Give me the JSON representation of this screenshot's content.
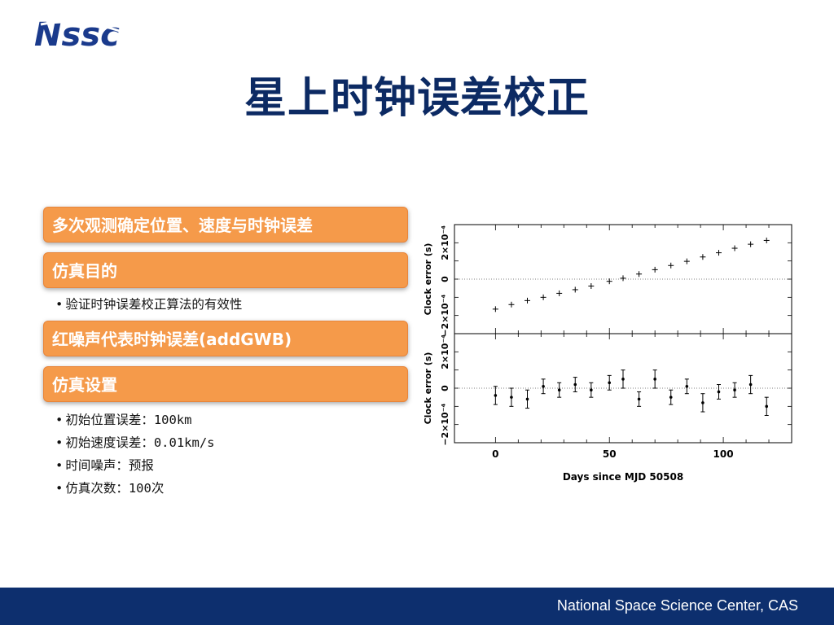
{
  "logo": {
    "text": "Nssc"
  },
  "title": "星上时钟误差校正",
  "sections": [
    {
      "heading": "多次观测确定位置、速度与时钟误差",
      "bullets": []
    },
    {
      "heading": "仿真目的",
      "bullets": [
        "验证时钟误差校正算法的有效性"
      ]
    },
    {
      "heading": "红噪声代表时钟误差(addGWB)",
      "bullets": []
    },
    {
      "heading": "仿真设置",
      "bullets": [
        "初始位置误差：100km",
        "初始速度误差：0.01km/s",
        "时间噪声：预报",
        "仿真次数：100次"
      ]
    }
  ],
  "footer": {
    "text": "National Space Science Center, CAS"
  },
  "chart_data": [
    {
      "type": "scatter",
      "xlabel": "Days since MJD 50508",
      "ylabel": "Clock error (s)",
      "xlim": [
        -18,
        130
      ],
      "ylim": [
        -0.0003,
        0.0003
      ],
      "yticks": [
        "−2×10⁻⁴",
        "0",
        "2×10⁻⁴"
      ],
      "x": [
        0,
        7,
        14,
        21,
        28,
        35,
        42,
        50,
        56,
        63,
        70,
        77,
        84,
        91,
        98,
        105,
        112,
        119
      ],
      "y": [
        -0.000165,
        -0.00014,
        -0.000118,
        -0.0001,
        -7.8e-05,
        -5.8e-05,
        -3.8e-05,
        -1.2e-05,
        5e-06,
        2.8e-05,
        5.2e-05,
        7.5e-05,
        9.8e-05,
        0.000122,
        0.000145,
        0.00017,
        0.000192,
        0.000213
      ]
    },
    {
      "type": "scatter",
      "xlabel": "Days since MJD 50508",
      "ylabel": "Clock error (s)",
      "xlim": [
        -18,
        130
      ],
      "ylim": [
        -0.0003,
        0.0003
      ],
      "xticks": [
        "0",
        "50",
        "100"
      ],
      "yticks": [
        "−2×10⁻⁴",
        "0",
        "2×10⁻⁴"
      ],
      "x": [
        0,
        7,
        14,
        21,
        28,
        35,
        42,
        50,
        56,
        63,
        70,
        77,
        84,
        91,
        98,
        105,
        112,
        119
      ],
      "y": [
        -4e-05,
        -5e-05,
        -6e-05,
        1e-05,
        -1e-05,
        2e-05,
        -1e-05,
        3e-05,
        5e-05,
        -6e-05,
        5e-05,
        -5e-05,
        1e-05,
        -8e-05,
        -2e-05,
        -1e-05,
        2e-05,
        -0.0001
      ],
      "err": [
        5e-05,
        5e-05,
        5e-05,
        4e-05,
        4e-05,
        4e-05,
        4e-05,
        4e-05,
        5e-05,
        4e-05,
        5e-05,
        4e-05,
        4e-05,
        5e-05,
        4e-05,
        4e-05,
        5e-05,
        5e-05
      ]
    }
  ],
  "colors": {
    "title": "#0c2a63",
    "bar": "#f59a4a",
    "footer": "#0d2f6e"
  }
}
